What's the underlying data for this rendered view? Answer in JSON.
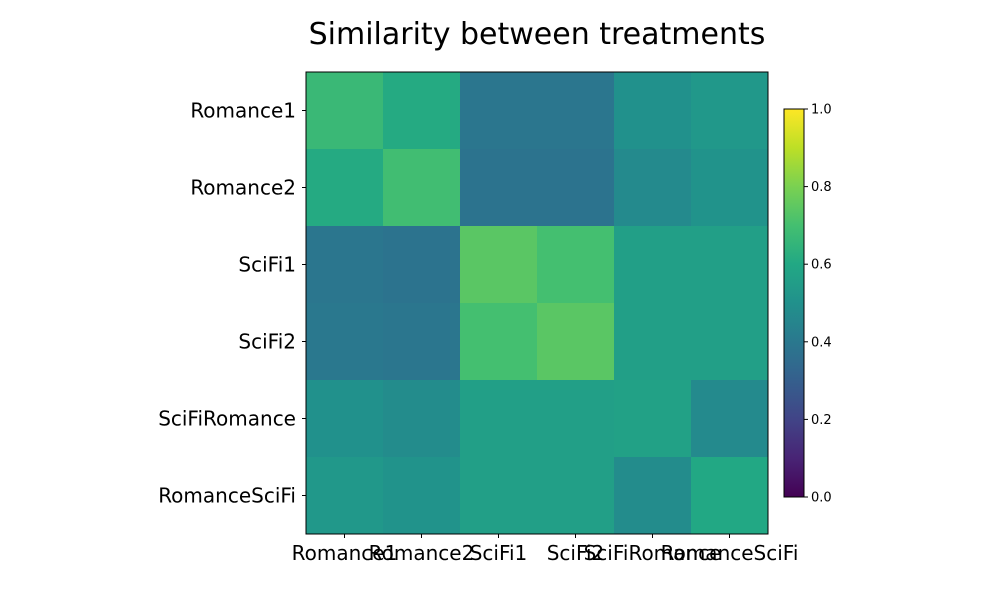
{
  "chart_data": {
    "type": "heatmap",
    "title": "Similarity between treatments",
    "xlabel": "",
    "ylabel": "",
    "row_labels": [
      "Romance1",
      "Romance2",
      "SciFi1",
      "SciFi2",
      "SciFiRomance",
      "RomanceSciFi"
    ],
    "col_labels": [
      "Romance1",
      "Romance2",
      "SciFi1",
      "SciFi2",
      "SciFiRomance",
      "RomanceSciFi"
    ],
    "values": [
      [
        0.67,
        0.61,
        0.39,
        0.39,
        0.5,
        0.53
      ],
      [
        0.61,
        0.69,
        0.38,
        0.38,
        0.47,
        0.51
      ],
      [
        0.39,
        0.38,
        0.74,
        0.7,
        0.56,
        0.56
      ],
      [
        0.4,
        0.39,
        0.7,
        0.74,
        0.56,
        0.56
      ],
      [
        0.5,
        0.48,
        0.56,
        0.56,
        0.57,
        0.47
      ],
      [
        0.53,
        0.51,
        0.56,
        0.56,
        0.48,
        0.6
      ]
    ],
    "colorscale": "viridis",
    "vmin": 0.0,
    "vmax": 1.0,
    "colorbar_ticks": [
      "0.0",
      "0.2",
      "0.4",
      "0.6",
      "0.8",
      "1.0"
    ],
    "grid": false
  }
}
